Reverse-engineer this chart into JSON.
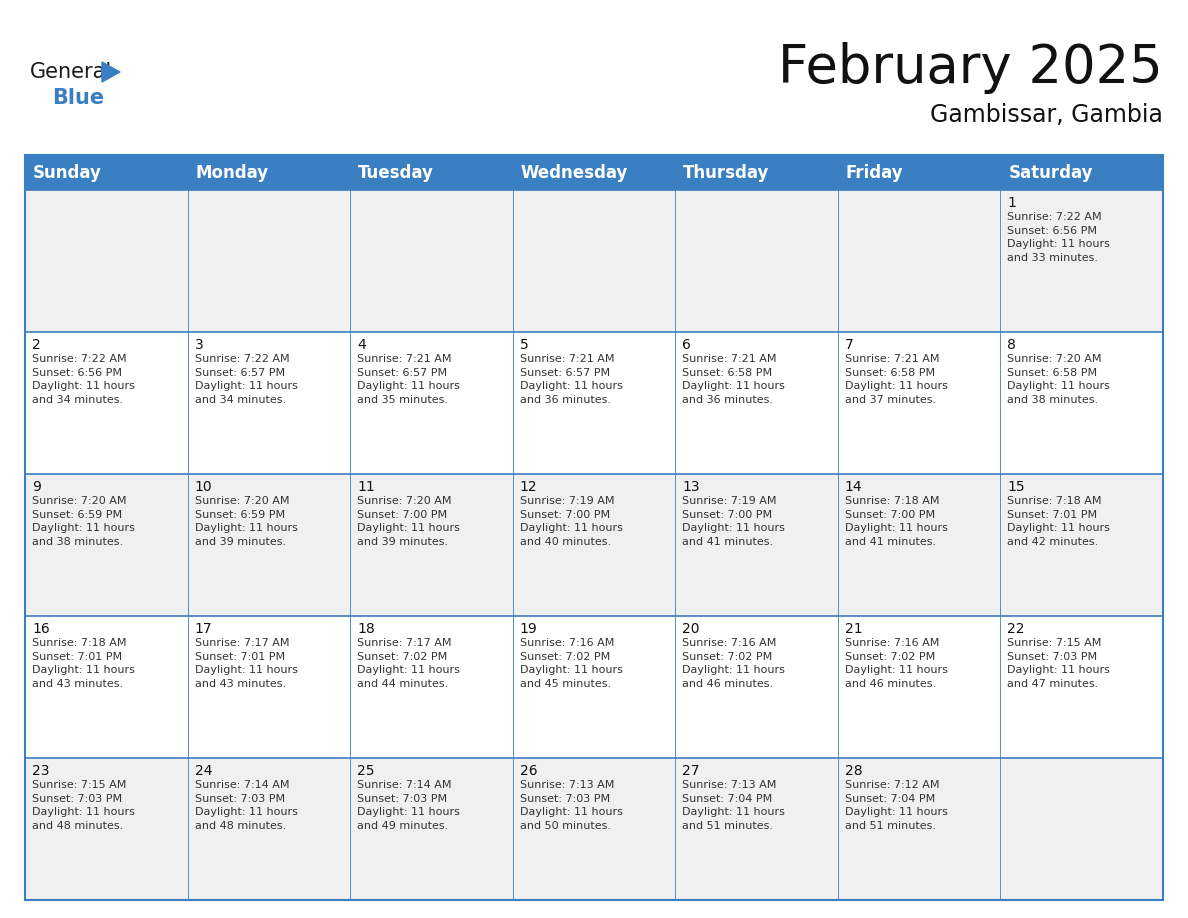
{
  "title": "February 2025",
  "subtitle": "Gambissar, Gambia",
  "header_color": "#3A7FC1",
  "header_text_color": "#FFFFFF",
  "background_color": "#FFFFFF",
  "cell_bg_odd": "#F0F0F0",
  "cell_bg_even": "#FFFFFF",
  "border_color": "#3A7FC1",
  "day_headers": [
    "Sunday",
    "Monday",
    "Tuesday",
    "Wednesday",
    "Thursday",
    "Friday",
    "Saturday"
  ],
  "title_fontsize": 38,
  "subtitle_fontsize": 17,
  "header_fontsize": 12,
  "day_num_fontsize": 10,
  "cell_text_fontsize": 8,
  "weeks": [
    [
      {
        "day": null,
        "text": ""
      },
      {
        "day": null,
        "text": ""
      },
      {
        "day": null,
        "text": ""
      },
      {
        "day": null,
        "text": ""
      },
      {
        "day": null,
        "text": ""
      },
      {
        "day": null,
        "text": ""
      },
      {
        "day": 1,
        "text": "Sunrise: 7:22 AM\nSunset: 6:56 PM\nDaylight: 11 hours\nand 33 minutes."
      }
    ],
    [
      {
        "day": 2,
        "text": "Sunrise: 7:22 AM\nSunset: 6:56 PM\nDaylight: 11 hours\nand 34 minutes."
      },
      {
        "day": 3,
        "text": "Sunrise: 7:22 AM\nSunset: 6:57 PM\nDaylight: 11 hours\nand 34 minutes."
      },
      {
        "day": 4,
        "text": "Sunrise: 7:21 AM\nSunset: 6:57 PM\nDaylight: 11 hours\nand 35 minutes."
      },
      {
        "day": 5,
        "text": "Sunrise: 7:21 AM\nSunset: 6:57 PM\nDaylight: 11 hours\nand 36 minutes."
      },
      {
        "day": 6,
        "text": "Sunrise: 7:21 AM\nSunset: 6:58 PM\nDaylight: 11 hours\nand 36 minutes."
      },
      {
        "day": 7,
        "text": "Sunrise: 7:21 AM\nSunset: 6:58 PM\nDaylight: 11 hours\nand 37 minutes."
      },
      {
        "day": 8,
        "text": "Sunrise: 7:20 AM\nSunset: 6:58 PM\nDaylight: 11 hours\nand 38 minutes."
      }
    ],
    [
      {
        "day": 9,
        "text": "Sunrise: 7:20 AM\nSunset: 6:59 PM\nDaylight: 11 hours\nand 38 minutes."
      },
      {
        "day": 10,
        "text": "Sunrise: 7:20 AM\nSunset: 6:59 PM\nDaylight: 11 hours\nand 39 minutes."
      },
      {
        "day": 11,
        "text": "Sunrise: 7:20 AM\nSunset: 7:00 PM\nDaylight: 11 hours\nand 39 minutes."
      },
      {
        "day": 12,
        "text": "Sunrise: 7:19 AM\nSunset: 7:00 PM\nDaylight: 11 hours\nand 40 minutes."
      },
      {
        "day": 13,
        "text": "Sunrise: 7:19 AM\nSunset: 7:00 PM\nDaylight: 11 hours\nand 41 minutes."
      },
      {
        "day": 14,
        "text": "Sunrise: 7:18 AM\nSunset: 7:00 PM\nDaylight: 11 hours\nand 41 minutes."
      },
      {
        "day": 15,
        "text": "Sunrise: 7:18 AM\nSunset: 7:01 PM\nDaylight: 11 hours\nand 42 minutes."
      }
    ],
    [
      {
        "day": 16,
        "text": "Sunrise: 7:18 AM\nSunset: 7:01 PM\nDaylight: 11 hours\nand 43 minutes."
      },
      {
        "day": 17,
        "text": "Sunrise: 7:17 AM\nSunset: 7:01 PM\nDaylight: 11 hours\nand 43 minutes."
      },
      {
        "day": 18,
        "text": "Sunrise: 7:17 AM\nSunset: 7:02 PM\nDaylight: 11 hours\nand 44 minutes."
      },
      {
        "day": 19,
        "text": "Sunrise: 7:16 AM\nSunset: 7:02 PM\nDaylight: 11 hours\nand 45 minutes."
      },
      {
        "day": 20,
        "text": "Sunrise: 7:16 AM\nSunset: 7:02 PM\nDaylight: 11 hours\nand 46 minutes."
      },
      {
        "day": 21,
        "text": "Sunrise: 7:16 AM\nSunset: 7:02 PM\nDaylight: 11 hours\nand 46 minutes."
      },
      {
        "day": 22,
        "text": "Sunrise: 7:15 AM\nSunset: 7:03 PM\nDaylight: 11 hours\nand 47 minutes."
      }
    ],
    [
      {
        "day": 23,
        "text": "Sunrise: 7:15 AM\nSunset: 7:03 PM\nDaylight: 11 hours\nand 48 minutes."
      },
      {
        "day": 24,
        "text": "Sunrise: 7:14 AM\nSunset: 7:03 PM\nDaylight: 11 hours\nand 48 minutes."
      },
      {
        "day": 25,
        "text": "Sunrise: 7:14 AM\nSunset: 7:03 PM\nDaylight: 11 hours\nand 49 minutes."
      },
      {
        "day": 26,
        "text": "Sunrise: 7:13 AM\nSunset: 7:03 PM\nDaylight: 11 hours\nand 50 minutes."
      },
      {
        "day": 27,
        "text": "Sunrise: 7:13 AM\nSunset: 7:04 PM\nDaylight: 11 hours\nand 51 minutes."
      },
      {
        "day": 28,
        "text": "Sunrise: 7:12 AM\nSunset: 7:04 PM\nDaylight: 11 hours\nand 51 minutes."
      },
      {
        "day": null,
        "text": ""
      }
    ]
  ],
  "logo_general_color": "#1a1a1a",
  "logo_blue_color": "#3A7FC1",
  "logo_general_fontsize": 15,
  "logo_blue_fontsize": 15
}
